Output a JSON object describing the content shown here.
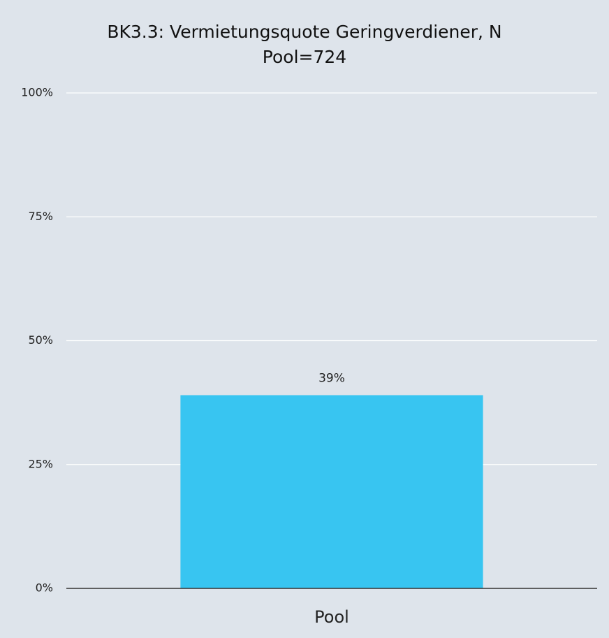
{
  "chart_data": {
    "type": "bar",
    "title": "BK3.3: Vermietungsquote Geringverdiener, N Pool=724",
    "categories": [
      "Pool"
    ],
    "values": [
      39
    ],
    "value_labels": [
      "39%"
    ],
    "color": "#38c5f1",
    "ylim": [
      0,
      100
    ],
    "yticks": [
      {
        "value": 0,
        "label": "0%"
      },
      {
        "value": 25,
        "label": "25%"
      },
      {
        "value": 50,
        "label": "50%"
      },
      {
        "value": 75,
        "label": "75%"
      },
      {
        "value": 100,
        "label": "100%"
      }
    ],
    "grid": true
  }
}
